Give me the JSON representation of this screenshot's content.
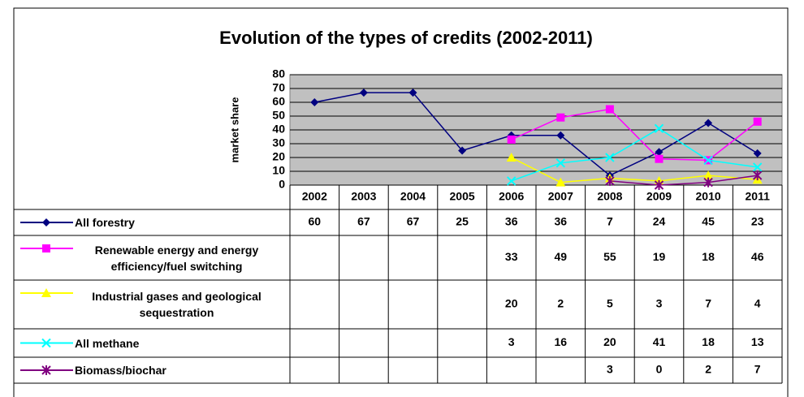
{
  "chart_data": {
    "type": "line",
    "title": "Evolution of the types of credits (2002-2011)",
    "ylabel": "market share",
    "categories": [
      "2002",
      "2003",
      "2004",
      "2005",
      "2006",
      "2007",
      "2008",
      "2009",
      "2010",
      "2011"
    ],
    "ylim": [
      0,
      80
    ],
    "yticks": [
      0,
      10,
      20,
      30,
      40,
      50,
      60,
      70,
      80
    ],
    "grid": true,
    "series": [
      {
        "name": "All forestry",
        "color": "#000080",
        "marker": "diamond",
        "values": [
          60,
          67,
          67,
          25,
          36,
          36,
          7,
          24,
          45,
          23
        ]
      },
      {
        "name": "Renewable energy and energy efficiency/fuel switching",
        "color": "#ff00ff",
        "marker": "square",
        "values": [
          null,
          null,
          null,
          null,
          33,
          49,
          55,
          19,
          18,
          46
        ]
      },
      {
        "name": "Industrial gases and geological sequestration",
        "color": "#ffff00",
        "marker": "triangle",
        "values": [
          null,
          null,
          null,
          null,
          20,
          2,
          5,
          3,
          7,
          4
        ]
      },
      {
        "name": "All methane",
        "color": "#00ffff",
        "marker": "x",
        "values": [
          null,
          null,
          null,
          null,
          3,
          16,
          20,
          41,
          18,
          13
        ]
      },
      {
        "name": "Biomass/biochar",
        "color": "#800080",
        "marker": "star",
        "values": [
          null,
          null,
          null,
          null,
          null,
          null,
          3,
          0,
          2,
          7
        ]
      }
    ]
  }
}
